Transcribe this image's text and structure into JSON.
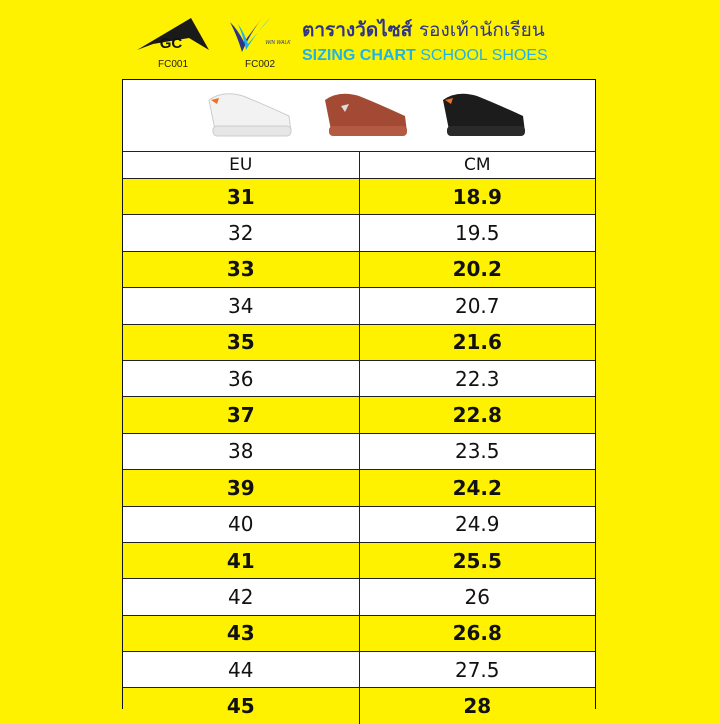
{
  "logos": [
    {
      "name": "GC",
      "code": "FC001"
    },
    {
      "name": "WIN WALK",
      "code": "FC002"
    }
  ],
  "title": {
    "thai_bold": "ตารางวัดไซส์",
    "thai_regular": "รองเท้านักเรียน",
    "en_bold": "SIZING CHART",
    "en_regular": "SCHOOL SHOES"
  },
  "shoes": [
    {
      "color": "white"
    },
    {
      "color": "brown"
    },
    {
      "color": "black"
    }
  ],
  "table": {
    "headers": [
      "EU",
      "CM"
    ],
    "rows": [
      [
        "31",
        "18.9"
      ],
      [
        "32",
        "19.5"
      ],
      [
        "33",
        "20.2"
      ],
      [
        "34",
        "20.7"
      ],
      [
        "35",
        "21.6"
      ],
      [
        "36",
        "22.3"
      ],
      [
        "37",
        "22.8"
      ],
      [
        "38",
        "23.5"
      ],
      [
        "39",
        "24.2"
      ],
      [
        "40",
        "24.9"
      ],
      [
        "41",
        "25.5"
      ],
      [
        "42",
        "26"
      ],
      [
        "43",
        "26.8"
      ],
      [
        "44",
        "27.5"
      ],
      [
        "45",
        "28"
      ]
    ]
  },
  "colors": {
    "background": "#fff200",
    "title_thai": "#2e3589",
    "title_en": "#1fb3e8"
  }
}
